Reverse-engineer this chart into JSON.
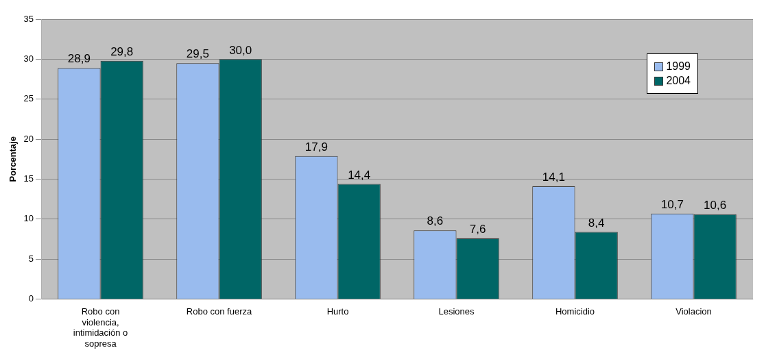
{
  "chart_data": {
    "type": "bar",
    "ylabel": "Porcentaje",
    "categories": [
      "Robo con violencia, intimidación o sopresa",
      "Robo con fuerza",
      "Hurto",
      "Lesiones",
      "Homicidio",
      "Violacion"
    ],
    "series": [
      {
        "name": "1999",
        "color": "#99bbee",
        "values": [
          28.9,
          29.5,
          17.9,
          8.6,
          14.1,
          10.7
        ],
        "value_labels": [
          "28,9",
          "29,5",
          "17,9",
          "8,6",
          "14,1",
          "10,7"
        ]
      },
      {
        "name": "2004",
        "color": "#006666",
        "values": [
          29.8,
          30.0,
          14.4,
          7.6,
          8.4,
          10.6
        ],
        "value_labels": [
          "29,8",
          "30,0",
          "14,4",
          "7,6",
          "8,4",
          "10,6"
        ]
      }
    ],
    "ylim": [
      0,
      35
    ],
    "yticks": [
      0,
      5,
      10,
      15,
      20,
      25,
      30,
      35
    ],
    "grid": "y",
    "legend": "top right"
  }
}
